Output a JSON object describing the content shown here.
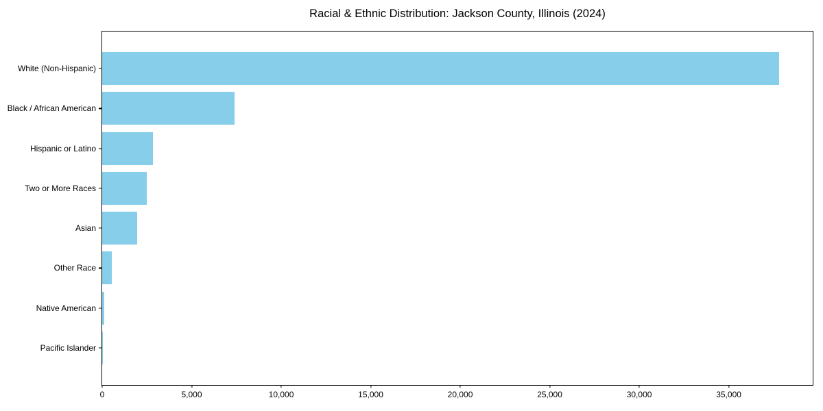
{
  "chart_data": {
    "type": "bar",
    "orientation": "horizontal",
    "title": "Racial & Ethnic Distribution: Jackson County, Illinois (2024)",
    "categories": [
      "White (Non-Hispanic)",
      "Black / African American",
      "Hispanic or Latino",
      "Two or More Races",
      "Asian",
      "Other Race",
      "Native American",
      "Pacific Islander"
    ],
    "values": [
      37800,
      7400,
      2850,
      2500,
      1970,
      550,
      130,
      30
    ],
    "xlabel": "",
    "ylabel": "",
    "xlim": [
      0,
      39690
    ],
    "xticks": [
      {
        "value": 0,
        "label": "0"
      },
      {
        "value": 5000,
        "label": "5,000"
      },
      {
        "value": 10000,
        "label": "10,000"
      },
      {
        "value": 15000,
        "label": "15,000"
      },
      {
        "value": 20000,
        "label": "20,000"
      },
      {
        "value": 25000,
        "label": "25,000"
      },
      {
        "value": 30000,
        "label": "30,000"
      },
      {
        "value": 35000,
        "label": "35,000"
      }
    ],
    "bar_color": "#87ceeb",
    "background_color": "#ffffff",
    "spine_color": "#000000",
    "grid": false,
    "legend_position": "none"
  }
}
